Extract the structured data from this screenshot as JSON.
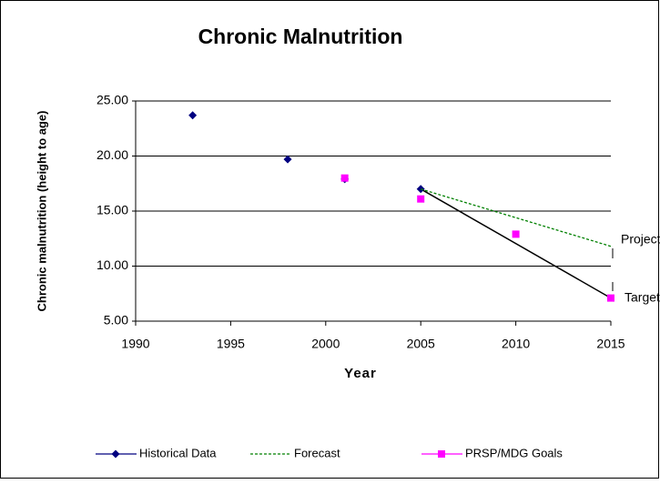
{
  "chart_data": {
    "type": "scatter",
    "title": "Chronic Malnutrition",
    "x_label": "Year",
    "y_label": "Chronic malnutrition (height to age)",
    "xlim": [
      1990,
      2015
    ],
    "xticks": [
      1990,
      1995,
      2000,
      2005,
      2010,
      2015
    ],
    "ylim": [
      5,
      25
    ],
    "yticks": [
      {
        "value": 5,
        "label": "5.00"
      },
      {
        "value": 10,
        "label": "10.00"
      },
      {
        "value": 15,
        "label": "15.00"
      },
      {
        "value": 20,
        "label": "20.00"
      },
      {
        "value": 25,
        "label": "25.00"
      }
    ],
    "grid": true,
    "series": [
      {
        "name": "Historical Data",
        "color": "#000080",
        "marker": "diamond",
        "x": [
          1993,
          1998,
          2001,
          2005
        ],
        "values": [
          23.7,
          19.7,
          17.9,
          17.0
        ]
      },
      {
        "name": "Forecast",
        "color": "#008000",
        "marker": "none",
        "dash": true,
        "x": [
          2005,
          2015
        ],
        "values": [
          17.0,
          11.8
        ]
      },
      {
        "name": "PRSP/MDG Goals",
        "color": "#ff00ff",
        "marker": "square",
        "x": [
          2001,
          2005,
          2010,
          2015
        ],
        "values": [
          18.0,
          16.1,
          12.9,
          7.1
        ]
      }
    ],
    "target_line": {
      "color": "#000000",
      "x": [
        2005,
        2015
      ],
      "values": [
        17.0,
        7.1
      ]
    },
    "annotations": [
      "Projected",
      "Target"
    ]
  }
}
